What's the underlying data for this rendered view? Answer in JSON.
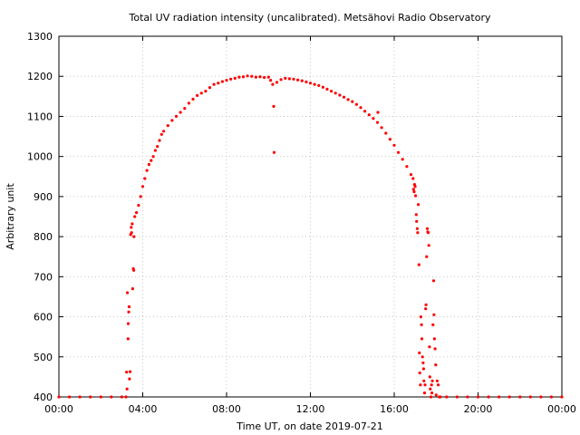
{
  "chart_data": {
    "type": "scatter",
    "title": "Total UV radiation intensity (uncalibrated). Metsähovi Radio Observatory",
    "xlabel": "Time UT, on date 2019-07-21",
    "ylabel": "Arbitrary unit",
    "xlim": [
      0,
      24
    ],
    "ylim": [
      400,
      1300
    ],
    "x_ticks": [
      {
        "value": 0,
        "label": "00:00"
      },
      {
        "value": 4,
        "label": "04:00"
      },
      {
        "value": 8,
        "label": "08:00"
      },
      {
        "value": 12,
        "label": "12:00"
      },
      {
        "value": 16,
        "label": "16:00"
      },
      {
        "value": 20,
        "label": "20:00"
      },
      {
        "value": 24,
        "label": "00:00"
      }
    ],
    "y_ticks": [
      {
        "value": 400,
        "label": "400"
      },
      {
        "value": 500,
        "label": "500"
      },
      {
        "value": 600,
        "label": "600"
      },
      {
        "value": 700,
        "label": "700"
      },
      {
        "value": 800,
        "label": "800"
      },
      {
        "value": 900,
        "label": "900"
      },
      {
        "value": 1000,
        "label": "1000"
      },
      {
        "value": 1100,
        "label": "1100"
      },
      {
        "value": 1200,
        "label": "1200"
      },
      {
        "value": 1300,
        "label": "1300"
      }
    ],
    "grid": true,
    "series_color": "#ff0000",
    "grid_color": "#c8c8c8",
    "points": [
      [
        0.0,
        400
      ],
      [
        0.5,
        400
      ],
      [
        1.0,
        400
      ],
      [
        1.5,
        400
      ],
      [
        2.0,
        400
      ],
      [
        2.5,
        400
      ],
      [
        3.0,
        400
      ],
      [
        3.2,
        400
      ],
      [
        3.23,
        462
      ],
      [
        3.25,
        420
      ],
      [
        3.27,
        660
      ],
      [
        3.3,
        545
      ],
      [
        3.31,
        583
      ],
      [
        3.33,
        612
      ],
      [
        3.35,
        625
      ],
      [
        3.37,
        445
      ],
      [
        3.4,
        463
      ],
      [
        3.42,
        805
      ],
      [
        3.45,
        823
      ],
      [
        3.47,
        810
      ],
      [
        3.5,
        832
      ],
      [
        3.52,
        670
      ],
      [
        3.55,
        720
      ],
      [
        3.57,
        716
      ],
      [
        3.58,
        800
      ],
      [
        3.62,
        850
      ],
      [
        3.7,
        860
      ],
      [
        3.8,
        878
      ],
      [
        3.9,
        900
      ],
      [
        4.0,
        925
      ],
      [
        4.1,
        945
      ],
      [
        4.2,
        965
      ],
      [
        4.3,
        980
      ],
      [
        4.4,
        990
      ],
      [
        4.5,
        1000
      ],
      [
        4.6,
        1015
      ],
      [
        4.7,
        1025
      ],
      [
        4.8,
        1040
      ],
      [
        4.9,
        1055
      ],
      [
        5.0,
        1063
      ],
      [
        5.2,
        1077
      ],
      [
        5.4,
        1090
      ],
      [
        5.6,
        1100
      ],
      [
        5.8,
        1110
      ],
      [
        6.0,
        1120
      ],
      [
        6.2,
        1133
      ],
      [
        6.4,
        1143
      ],
      [
        6.6,
        1152
      ],
      [
        6.8,
        1158
      ],
      [
        7.0,
        1163
      ],
      [
        7.2,
        1172
      ],
      [
        7.4,
        1180
      ],
      [
        7.6,
        1183
      ],
      [
        7.8,
        1187
      ],
      [
        8.0,
        1190
      ],
      [
        8.2,
        1193
      ],
      [
        8.4,
        1195
      ],
      [
        8.6,
        1198
      ],
      [
        8.8,
        1199
      ],
      [
        9.0,
        1201
      ],
      [
        9.2,
        1200
      ],
      [
        9.4,
        1198
      ],
      [
        9.6,
        1199
      ],
      [
        9.8,
        1197
      ],
      [
        10.0,
        1198
      ],
      [
        10.1,
        1190
      ],
      [
        10.2,
        1180
      ],
      [
        10.25,
        1125
      ],
      [
        10.27,
        1010
      ],
      [
        10.4,
        1185
      ],
      [
        10.6,
        1192
      ],
      [
        10.8,
        1195
      ],
      [
        11.0,
        1194
      ],
      [
        11.2,
        1193
      ],
      [
        11.4,
        1191
      ],
      [
        11.6,
        1189
      ],
      [
        11.8,
        1186
      ],
      [
        12.0,
        1183
      ],
      [
        12.2,
        1180
      ],
      [
        12.4,
        1177
      ],
      [
        12.6,
        1173
      ],
      [
        12.8,
        1168
      ],
      [
        13.0,
        1163
      ],
      [
        13.2,
        1158
      ],
      [
        13.4,
        1153
      ],
      [
        13.6,
        1148
      ],
      [
        13.8,
        1142
      ],
      [
        14.0,
        1137
      ],
      [
        14.2,
        1130
      ],
      [
        14.4,
        1122
      ],
      [
        14.6,
        1113
      ],
      [
        14.8,
        1104
      ],
      [
        15.0,
        1095
      ],
      [
        15.2,
        1085
      ],
      [
        15.22,
        1110
      ],
      [
        15.4,
        1072
      ],
      [
        15.6,
        1058
      ],
      [
        15.8,
        1043
      ],
      [
        16.0,
        1028
      ],
      [
        16.2,
        1010
      ],
      [
        16.4,
        993
      ],
      [
        16.6,
        975
      ],
      [
        16.8,
        955
      ],
      [
        16.9,
        945
      ],
      [
        16.92,
        918
      ],
      [
        16.95,
        912
      ],
      [
        16.97,
        930
      ],
      [
        17.0,
        925
      ],
      [
        17.02,
        902
      ],
      [
        17.05,
        855
      ],
      [
        17.07,
        838
      ],
      [
        17.1,
        820
      ],
      [
        17.12,
        810
      ],
      [
        17.15,
        880
      ],
      [
        17.18,
        730
      ],
      [
        17.2,
        510
      ],
      [
        17.22,
        460
      ],
      [
        17.25,
        430
      ],
      [
        17.27,
        600
      ],
      [
        17.3,
        580
      ],
      [
        17.32,
        545
      ],
      [
        17.35,
        500
      ],
      [
        17.38,
        485
      ],
      [
        17.4,
        470
      ],
      [
        17.42,
        440
      ],
      [
        17.45,
        410
      ],
      [
        17.47,
        430
      ],
      [
        17.5,
        620
      ],
      [
        17.52,
        630
      ],
      [
        17.55,
        750
      ],
      [
        17.58,
        820
      ],
      [
        17.6,
        812
      ],
      [
        17.62,
        810
      ],
      [
        17.65,
        778
      ],
      [
        17.68,
        525
      ],
      [
        17.7,
        450
      ],
      [
        17.72,
        420
      ],
      [
        17.75,
        400
      ],
      [
        17.78,
        430
      ],
      [
        17.8,
        410
      ],
      [
        17.82,
        440
      ],
      [
        17.85,
        580
      ],
      [
        17.88,
        690
      ],
      [
        17.9,
        605
      ],
      [
        17.92,
        545
      ],
      [
        17.95,
        520
      ],
      [
        17.98,
        480
      ],
      [
        18.0,
        405
      ],
      [
        18.05,
        440
      ],
      [
        18.1,
        430
      ],
      [
        18.15,
        400
      ],
      [
        18.2,
        400
      ],
      [
        18.5,
        400
      ],
      [
        19.0,
        400
      ],
      [
        19.5,
        400
      ],
      [
        20.0,
        400
      ],
      [
        20.5,
        400
      ],
      [
        21.0,
        400
      ],
      [
        21.5,
        400
      ],
      [
        22.0,
        400
      ],
      [
        22.5,
        400
      ],
      [
        23.0,
        400
      ],
      [
        23.5,
        400
      ],
      [
        24.0,
        400
      ]
    ]
  }
}
